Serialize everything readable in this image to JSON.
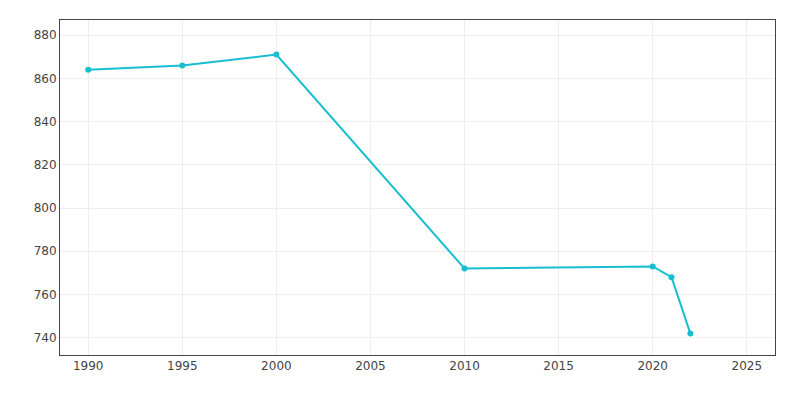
{
  "chart_data": {
    "type": "line",
    "x": [
      1990,
      1995,
      2000,
      2010,
      2020,
      2021,
      2022
    ],
    "values": [
      864,
      866,
      871,
      772,
      773,
      768,
      742
    ],
    "color": "#17becf",
    "marker": "circle",
    "xlim": [
      1988.5,
      2026.5
    ],
    "xticks": [
      1990,
      1995,
      2000,
      2005,
      2010,
      2015,
      2020,
      2025
    ],
    "ylim": [
      732,
      887
    ],
    "yticks": [
      740,
      760,
      780,
      800,
      820,
      840,
      860,
      880
    ],
    "grid": true
  }
}
